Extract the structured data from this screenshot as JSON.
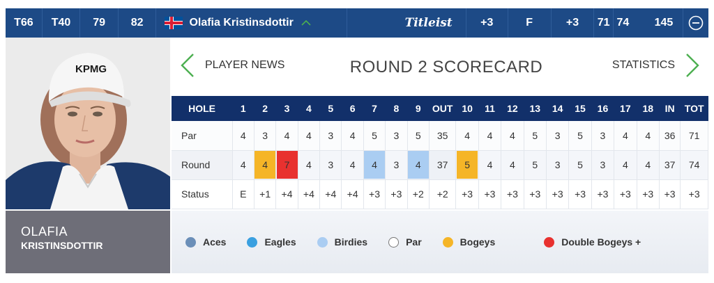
{
  "topbar": {
    "cells": [
      "T66",
      "T40",
      "79",
      "82"
    ],
    "player_name": "Olafia Kristinsdottir",
    "brand": "Titleist",
    "stats": [
      "+3",
      "F",
      "+3",
      "71",
      "74",
      "145"
    ]
  },
  "colors": {
    "topbar_bg": "#1d4a86",
    "table_header_bg": "#12306a",
    "nav_arrow": "#4caf50",
    "aces": "#6b8fb8",
    "eagles": "#3aa0e0",
    "birdies": "#aacdf2",
    "par": "#ffffff",
    "bogeys": "#f5b527",
    "double_bogeys": "#e8312f"
  },
  "icons": [
    "iceland-flag-icon",
    "chevron-up-icon",
    "chevron-left-icon",
    "chevron-right-icon",
    "minus-circle-icon"
  ],
  "player": {
    "first_name": "OLAFIA",
    "last_name": "KRISTINSDOTTIR",
    "cap_text": "KPMG"
  },
  "nav": {
    "left": "PLAYER NEWS",
    "title": "ROUND 2 SCORECARD",
    "right": "STATISTICS"
  },
  "scorecard": {
    "headers": [
      "HOLE",
      "1",
      "2",
      "3",
      "4",
      "5",
      "6",
      "7",
      "8",
      "9",
      "OUT",
      "10",
      "11",
      "12",
      "13",
      "14",
      "15",
      "16",
      "17",
      "18",
      "IN",
      "TOT"
    ],
    "rows": [
      {
        "label": "Par",
        "values": [
          "4",
          "3",
          "4",
          "4",
          "3",
          "4",
          "5",
          "3",
          "5",
          "35",
          "4",
          "4",
          "4",
          "5",
          "3",
          "5",
          "3",
          "4",
          "4",
          "36",
          "71"
        ]
      },
      {
        "label": "Round",
        "values": [
          "4",
          "4",
          "7",
          "4",
          "3",
          "4",
          "4",
          "3",
          "4",
          "37",
          "5",
          "4",
          "4",
          "5",
          "3",
          "5",
          "3",
          "4",
          "4",
          "37",
          "74"
        ],
        "highlights": [
          "",
          "bogey",
          "double",
          "",
          "",
          "",
          "birdie",
          "",
          "birdie",
          "",
          "bogey",
          "",
          "",
          "",
          "",
          "",
          "",
          "",
          "",
          "",
          ""
        ]
      },
      {
        "label": "Status",
        "values": [
          "E",
          "+1",
          "+4",
          "+4",
          "+4",
          "+4",
          "+3",
          "+3",
          "+2",
          "+2",
          "+3",
          "+3",
          "+3",
          "+3",
          "+3",
          "+3",
          "+3",
          "+3",
          "+3",
          "+3",
          "+3"
        ]
      }
    ]
  },
  "legend": [
    {
      "label": "Aces",
      "color": "#6b8fb8"
    },
    {
      "label": "Eagles",
      "color": "#3aa0e0"
    },
    {
      "label": "Birdies",
      "color": "#aacdf2"
    },
    {
      "label": "Par",
      "color": "#ffffff"
    },
    {
      "label": "Bogeys",
      "color": "#f5b527"
    },
    {
      "label": "Double Bogeys +",
      "color": "#e8312f"
    }
  ]
}
